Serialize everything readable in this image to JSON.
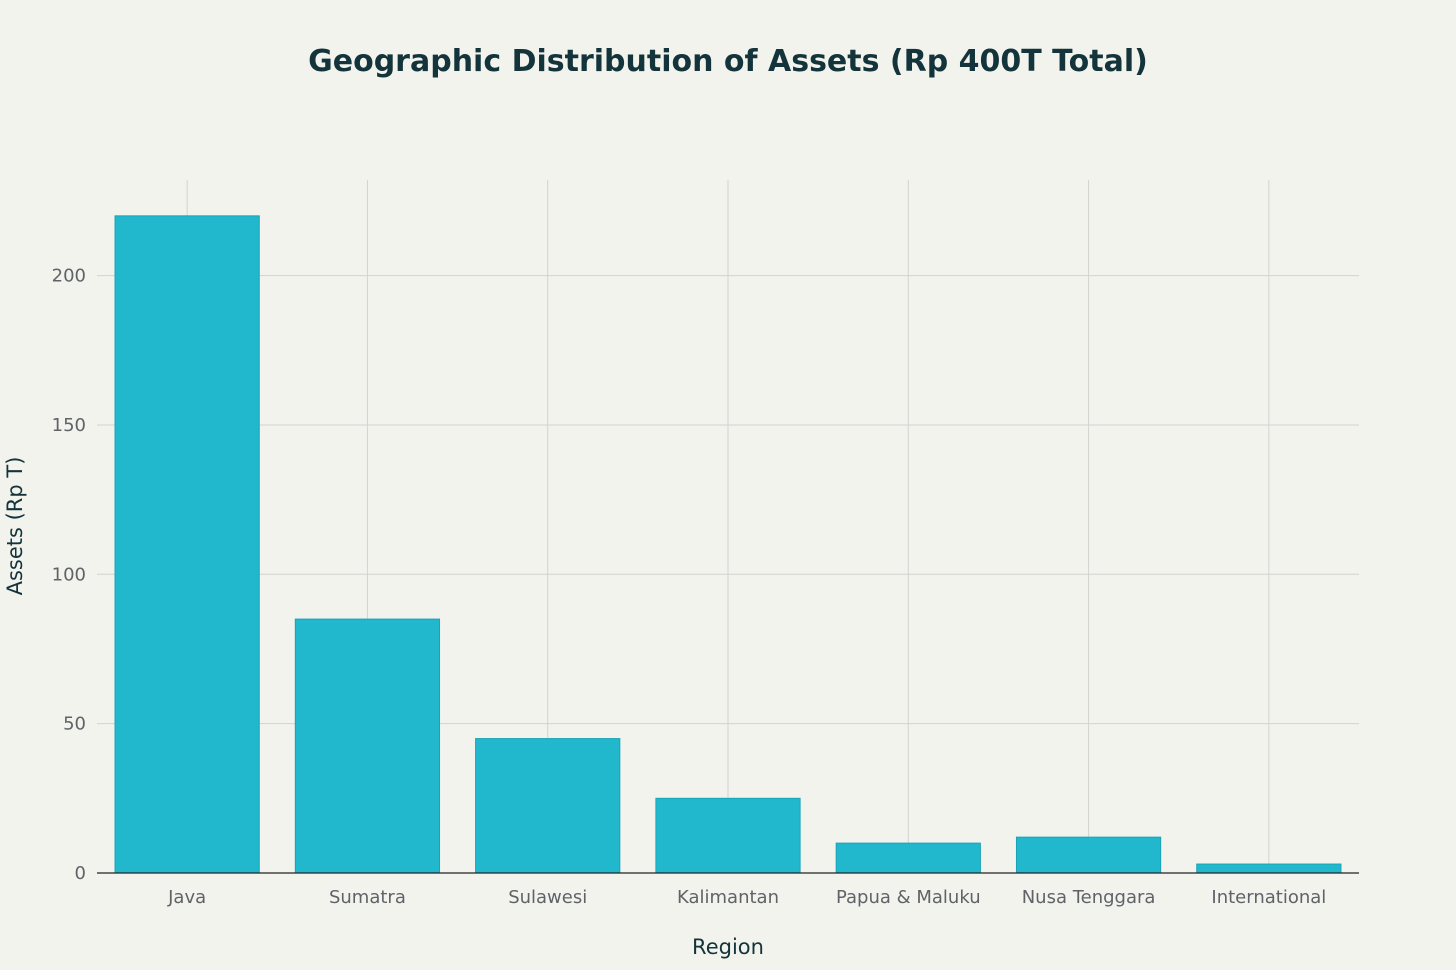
{
  "chart_data": {
    "type": "bar",
    "title": "Geographic Distribution of Assets (Rp 400T Total)",
    "xlabel": "Region",
    "ylabel": "Assets (Rp T)",
    "categories": [
      "Java",
      "Sumatra",
      "Sulawesi",
      "Kalimantan",
      "Papua & Maluku",
      "Nusa Tenggara",
      "International"
    ],
    "values": [
      220,
      85,
      45,
      25,
      10,
      12,
      3
    ],
    "ylim": [
      0,
      232
    ],
    "yticks": [
      0,
      50,
      100,
      150,
      200
    ],
    "grid": true,
    "bar_color": "#21b7cc"
  }
}
